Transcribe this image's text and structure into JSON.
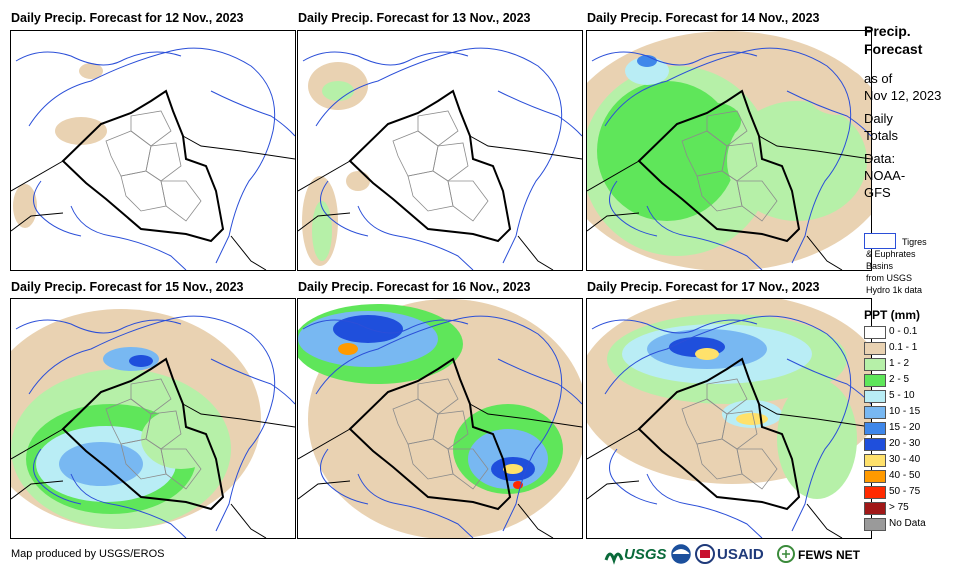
{
  "panels": [
    {
      "title": "Daily Precip. Forecast for 12 Nov., 2023"
    },
    {
      "title": "Daily Precip. Forecast for 13 Nov., 2023"
    },
    {
      "title": "Daily Precip. Forecast for 14 Nov., 2023"
    },
    {
      "title": "Daily Precip. Forecast for 15 Nov., 2023"
    },
    {
      "title": "Daily Precip. Forecast for 16 Nov., 2023"
    },
    {
      "title": "Daily Precip. Forecast for 17 Nov., 2023"
    }
  ],
  "sidebar": {
    "title_line1": "Precip.",
    "title_line2": "Forecast",
    "asof_line1": "as of",
    "asof_line2": "Nov 12, 2023",
    "daily_line1": "Daily",
    "daily_line2": "Totals",
    "data_line1": "Data:",
    "data_line2": "NOAA-",
    "data_line3": "GFS"
  },
  "basin_legend": {
    "line1": "Tigres",
    "line2": "& Euphrates",
    "line3": "Basins",
    "line4": "from USGS",
    "line5": "Hydro 1k data"
  },
  "ppt_legend": {
    "title": "PPT (mm)",
    "items": [
      {
        "label": "0 - 0.1",
        "color": "#ffffff"
      },
      {
        "label": "0.1 - 1",
        "color": "#e9d2b2"
      },
      {
        "label": "1 - 2",
        "color": "#b6f0a8"
      },
      {
        "label": "2 - 5",
        "color": "#5fe65a"
      },
      {
        "label": "5 - 10",
        "color": "#b9edf5"
      },
      {
        "label": "10 - 15",
        "color": "#78b8f2"
      },
      {
        "label": "15 - 20",
        "color": "#3f87ea"
      },
      {
        "label": "20 - 30",
        "color": "#1f4fdc"
      },
      {
        "label": "30 - 40",
        "color": "#ffe16b"
      },
      {
        "label": "40 - 50",
        "color": "#ff9a00"
      },
      {
        "label": "50 - 75",
        "color": "#ff2a00"
      },
      {
        "label": "> 75",
        "color": "#a11818"
      },
      {
        "label": "No Data",
        "color": "#9a9a9a"
      }
    ]
  },
  "footer": {
    "credit": "Map produced by USGS/EROS",
    "usgs_logo": "USGS",
    "usaid_logo": "USAID",
    "fewsnet_logo": "FEWS NET"
  }
}
